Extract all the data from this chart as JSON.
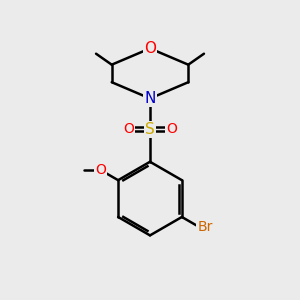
{
  "background_color": "#ebebeb",
  "bond_color": "#000000",
  "atom_colors": {
    "O": "#ff0000",
    "N": "#0000cc",
    "S": "#ccaa00",
    "Br": "#cc6600",
    "C": "#000000"
  },
  "figsize": [
    3.0,
    3.0
  ],
  "dpi": 100
}
